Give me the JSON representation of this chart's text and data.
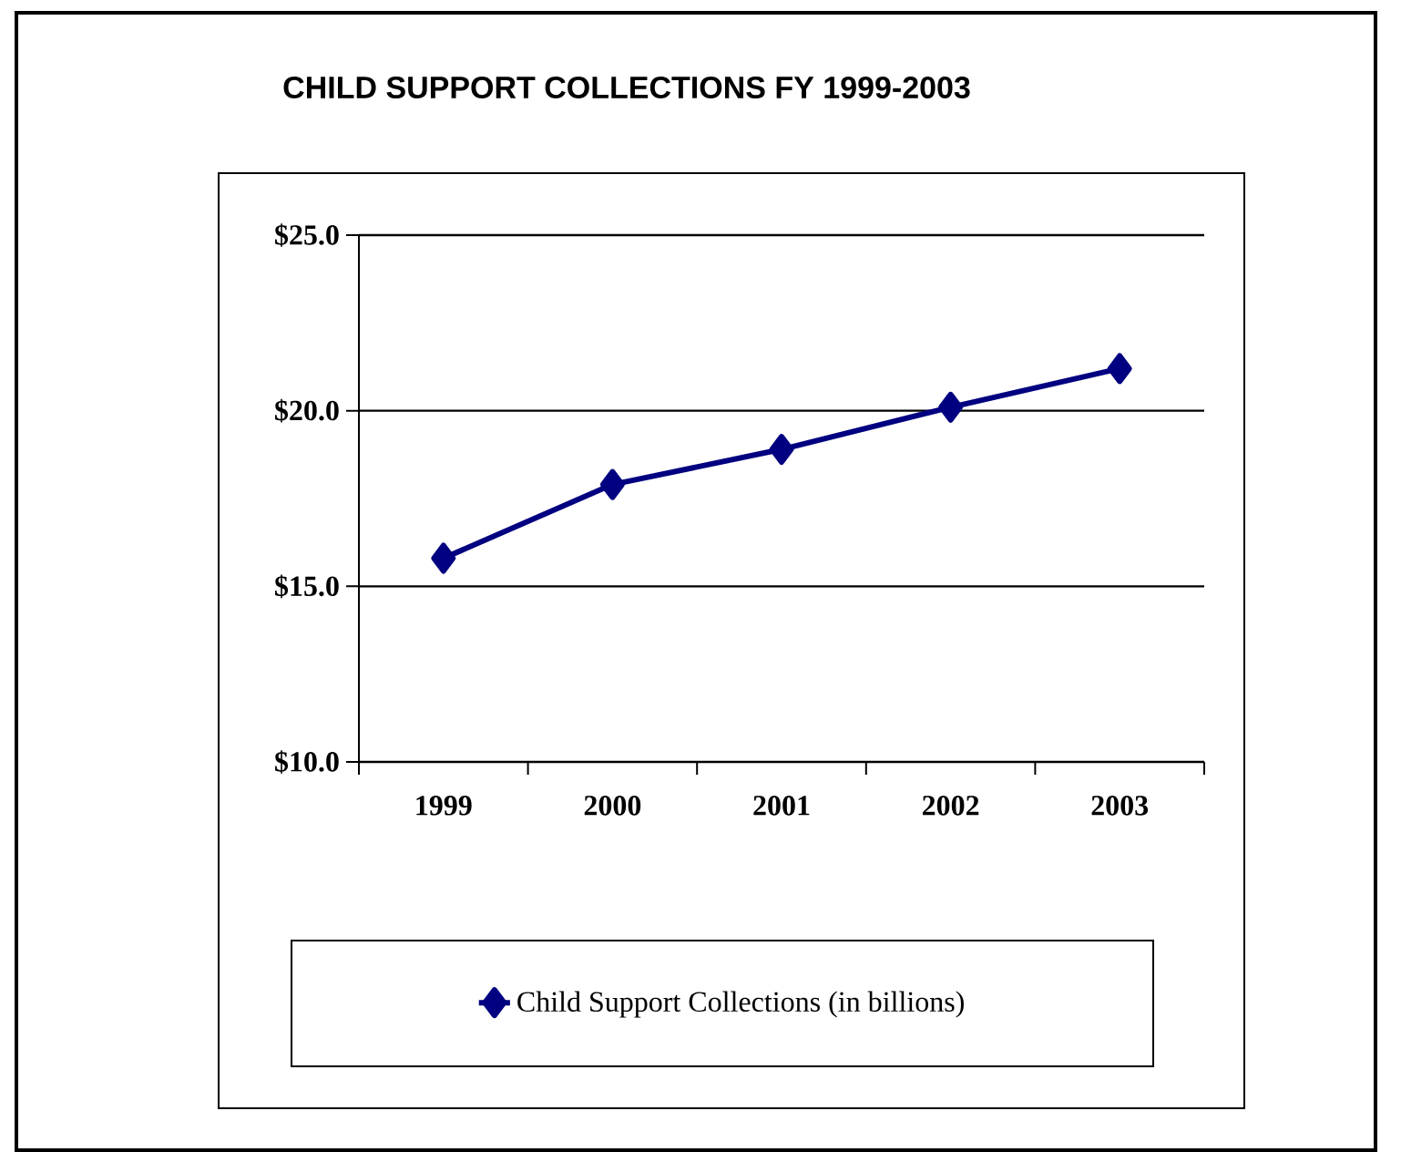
{
  "chart_data": {
    "type": "line",
    "title": "CHILD SUPPORT COLLECTIONS FY 1999-2003",
    "categories": [
      "1999",
      "2000",
      "2001",
      "2002",
      "2003"
    ],
    "series": [
      {
        "name": "Child Support Collections (in billions)",
        "color": "#000080",
        "values": [
          15.8,
          17.9,
          18.9,
          20.1,
          21.2
        ]
      }
    ],
    "ylim": [
      10,
      25
    ],
    "yticks": [
      {
        "value": 10,
        "label": "$10.0"
      },
      {
        "value": 15,
        "label": "$15.0"
      },
      {
        "value": 20,
        "label": "$20.0"
      },
      {
        "value": 25,
        "label": "$25.0"
      }
    ],
    "grid": "y",
    "legend": "bottom",
    "marker": "diamond",
    "line_style": "solid"
  }
}
